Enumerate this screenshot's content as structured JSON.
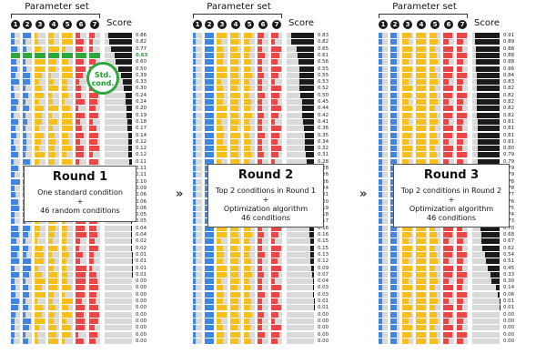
{
  "panels": [
    {
      "title": "Parameter set",
      "score_label": "Score",
      "param_numbers": [
        "1",
        "2",
        "3",
        "4",
        "5",
        "6",
        "7"
      ],
      "round_title": "Round 1",
      "round_lines": [
        "One standard condition",
        "+",
        "46 random conditions"
      ],
      "highlight_row": 3,
      "callout_lines": [
        "Std.",
        "cond."
      ],
      "scores": [
        "0.86",
        "0.82",
        "0.77",
        "0.63",
        "0.60",
        "0.50",
        "0.39",
        "0.33",
        "0.30",
        "0.24",
        "0.24",
        "0.20",
        "0.19",
        "0.18",
        "0.17",
        "0.14",
        "0.12",
        "0.12",
        "0.12",
        "0.11",
        "0.11",
        "0.11",
        "0.10",
        "0.09",
        "0.06",
        "0.06",
        "0.06",
        "0.05",
        "0.05",
        "0.04",
        "0.04",
        "0.02",
        "0.02",
        "0.01",
        "0.01",
        "0.01",
        "0.01",
        "0.00",
        "0.00",
        "0.00",
        "0.00",
        "0.00",
        "0.00",
        "0.00",
        "0.00",
        "0.00",
        "0.00"
      ]
    },
    {
      "title": "Parameter set",
      "score_label": "Score",
      "param_numbers": [
        "1",
        "2",
        "3",
        "4",
        "5",
        "6",
        "7"
      ],
      "round_title": "Round 2",
      "round_lines": [
        "Top 2 conditions in Round 1",
        "+",
        "Optimization algorithm",
        "46 conditions"
      ],
      "scores": [
        "0.83",
        "0.82",
        "0.65",
        "0.61",
        "0.56",
        "0.55",
        "0.55",
        "0.53",
        "0.52",
        "0.50",
        "0.45",
        "0.44",
        "0.42",
        "0.41",
        "0.36",
        "0.35",
        "0.34",
        "0.32",
        "0.31",
        "0.28",
        "0.28",
        "0.26",
        "0.26",
        "0.24",
        "0.21",
        "0.20",
        "0.19",
        "0.18",
        "0.17",
        "0.16",
        "0.16",
        "0.15",
        "0.15",
        "0.13",
        "0.12",
        "0.09",
        "0.07",
        "0.04",
        "0.03",
        "0.03",
        "0.01",
        "0.01",
        "0.00",
        "0.00",
        "0.00",
        "0.00",
        "0.00"
      ]
    },
    {
      "title": "Parameter set",
      "score_label": "Score",
      "param_numbers": [
        "1",
        "2",
        "3",
        "4",
        "5",
        "6",
        "7"
      ],
      "round_title": "Round 3",
      "round_lines": [
        "Top 2 conditions in Round 2",
        "+",
        "Optimization algorithm",
        "46 conditions"
      ],
      "scores": [
        "0.91",
        "0.89",
        "0.88",
        "0.88",
        "0.88",
        "0.86",
        "0.84",
        "0.83",
        "0.82",
        "0.82",
        "0.82",
        "0.82",
        "0.82",
        "0.81",
        "0.81",
        "0.81",
        "0.81",
        "0.80",
        "0.79",
        "0.79",
        "0.79",
        "0.79",
        "0.78",
        "0.78",
        "0.77",
        "0.76",
        "0.75",
        "0.74",
        "0.73",
        "0.70",
        "0.68",
        "0.67",
        "0.62",
        "0.54",
        "0.51",
        "0.45",
        "0.33",
        "0.30",
        "0.14",
        "0.06",
        "0.01",
        "0.01",
        "0.00",
        "0.00",
        "0.00",
        "0.00",
        "0.00"
      ]
    }
  ],
  "arrows": [
    "»",
    "»"
  ],
  "colors": {
    "blue": "#3f86e0",
    "yellow": "#f7bf1b",
    "red": "#ec4545",
    "gray": "#d9d9d9",
    "green": "#2ea83d",
    "black": "#1a1a1a"
  }
}
